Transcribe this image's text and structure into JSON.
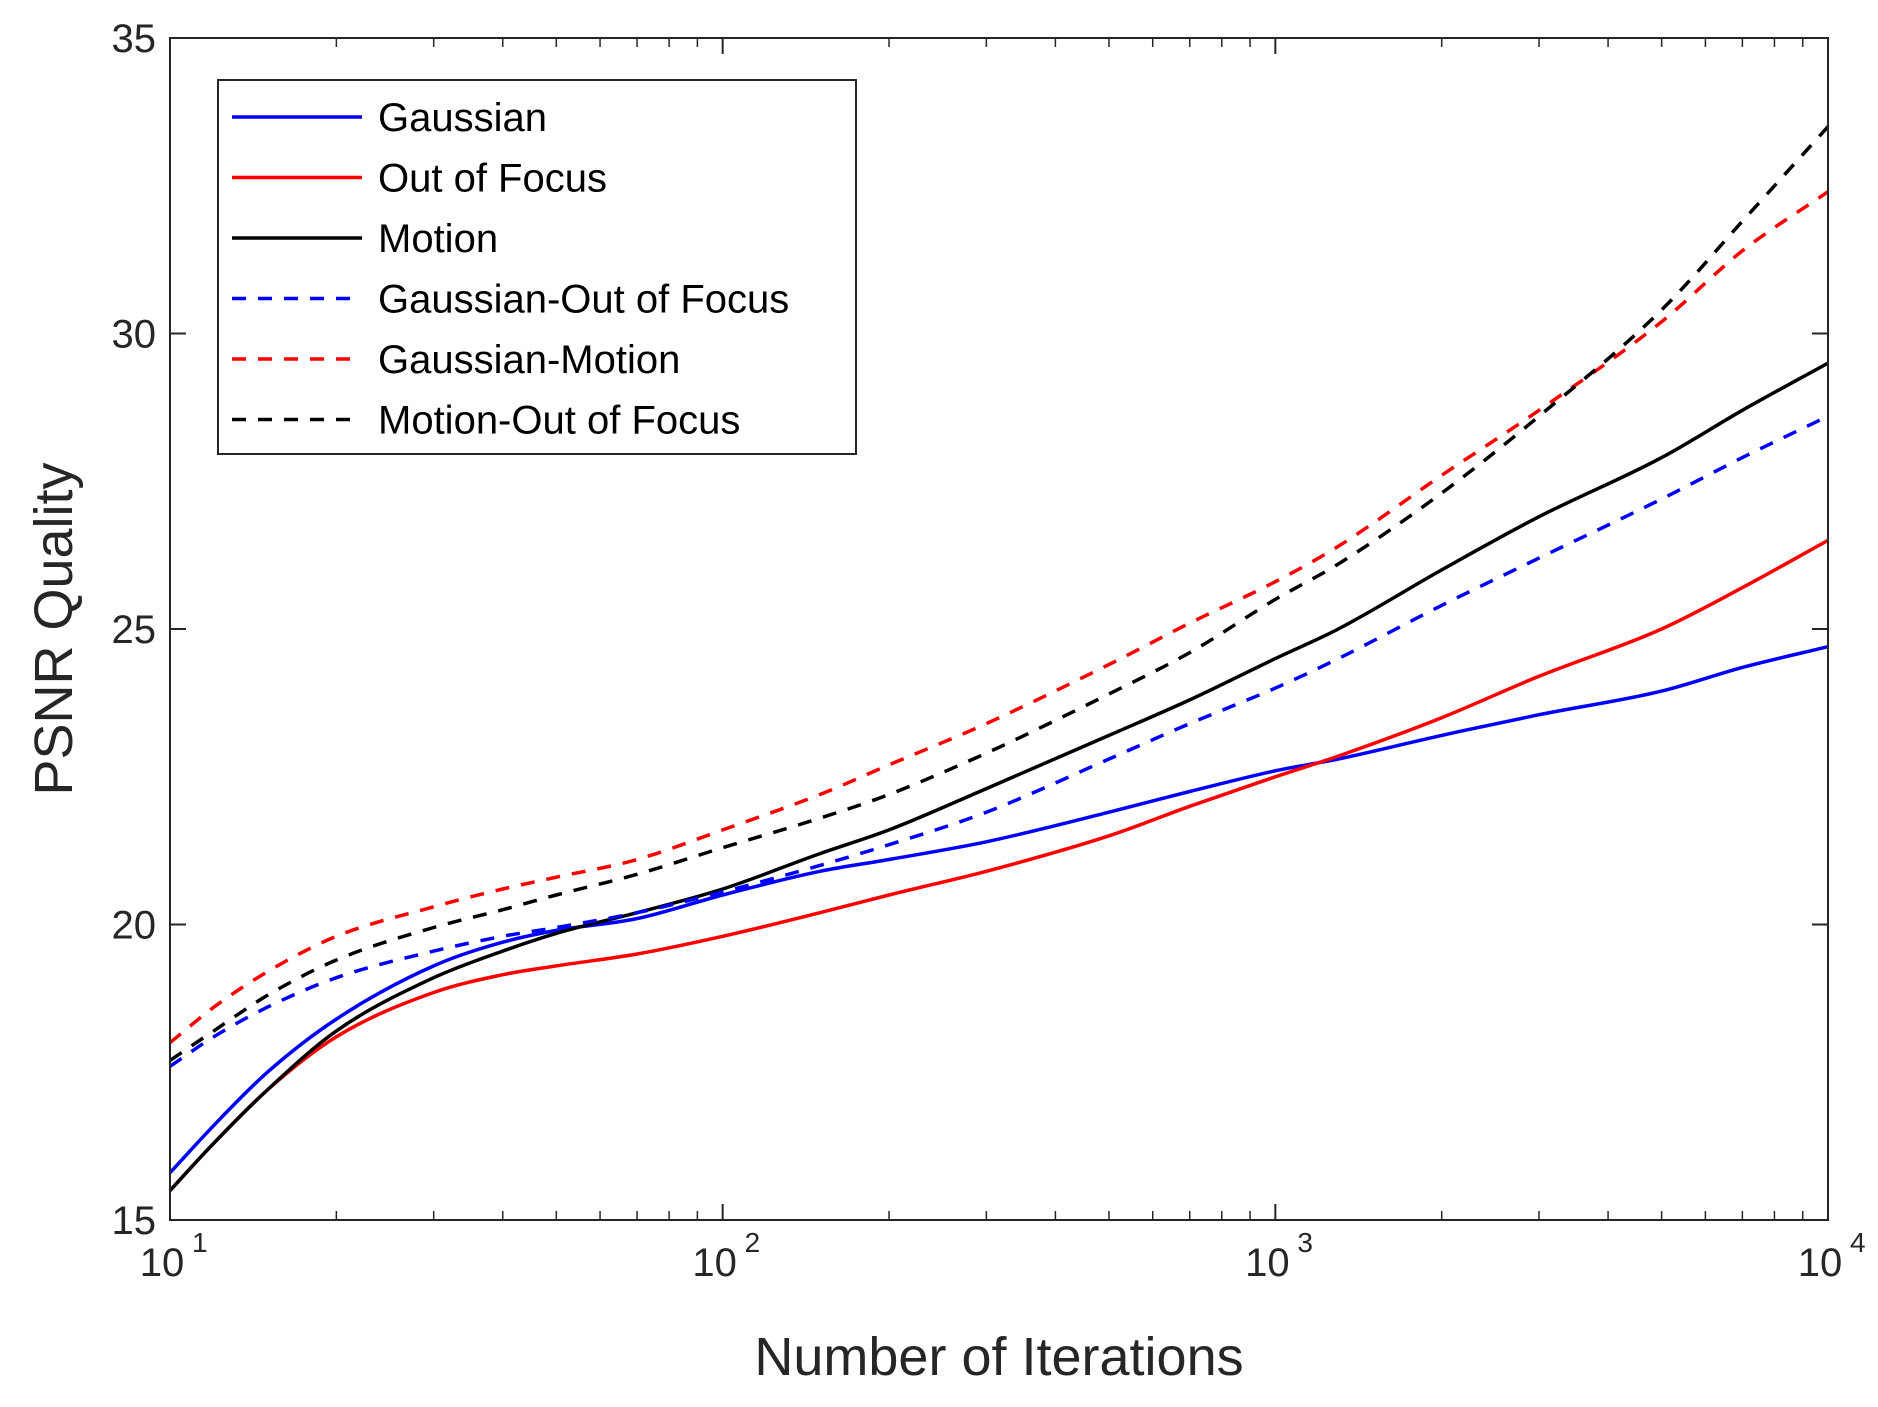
{
  "chart_data": {
    "type": "line",
    "title": "",
    "xlabel": "Number of Iterations",
    "ylabel": "PSNR Quality",
    "xscale": "log",
    "xlim": [
      10,
      10000
    ],
    "ylim": [
      15,
      35
    ],
    "yticks": [
      15,
      20,
      25,
      30,
      35
    ],
    "xticks": [
      {
        "value": 10,
        "base": "10",
        "exp": "1"
      },
      {
        "value": 100,
        "base": "10",
        "exp": "2"
      },
      {
        "value": 1000,
        "base": "10",
        "exp": "3"
      },
      {
        "value": 10000,
        "base": "10",
        "exp": "4"
      }
    ],
    "grid": false,
    "legend_location": "top-left",
    "x": [
      10,
      12,
      15,
      20,
      30,
      40,
      50,
      70,
      100,
      150,
      200,
      300,
      500,
      700,
      1000,
      1300,
      2000,
      3000,
      5000,
      7000,
      10000
    ],
    "series": [
      {
        "name": "Gaussian",
        "color": "#0000ff",
        "style": "solid",
        "values": [
          15.8,
          16.6,
          17.5,
          18.4,
          19.3,
          19.7,
          19.9,
          20.1,
          20.5,
          20.9,
          21.1,
          21.4,
          21.9,
          22.25,
          22.6,
          22.8,
          23.2,
          23.55,
          23.95,
          24.35,
          24.7
        ]
      },
      {
        "name": "Out of Focus",
        "color": "#ff0000",
        "style": "solid",
        "values": [
          15.5,
          16.3,
          17.2,
          18.1,
          18.85,
          19.15,
          19.3,
          19.5,
          19.8,
          20.2,
          20.5,
          20.9,
          21.5,
          22.0,
          22.5,
          22.85,
          23.5,
          24.2,
          25.0,
          25.7,
          26.5
        ]
      },
      {
        "name": "Motion",
        "color": "#000000",
        "style": "solid",
        "values": [
          15.5,
          16.3,
          17.2,
          18.2,
          19.1,
          19.55,
          19.85,
          20.2,
          20.6,
          21.2,
          21.6,
          22.3,
          23.2,
          23.8,
          24.5,
          25.0,
          26.0,
          26.9,
          27.9,
          28.7,
          29.5
        ]
      },
      {
        "name": "Gaussian-Out of Focus",
        "color": "#0000ff",
        "style": "dashed",
        "values": [
          17.6,
          18.1,
          18.6,
          19.1,
          19.55,
          19.8,
          19.95,
          20.2,
          20.55,
          21.0,
          21.35,
          21.9,
          22.8,
          23.4,
          24.0,
          24.5,
          25.4,
          26.2,
          27.2,
          27.9,
          28.6
        ]
      },
      {
        "name": "Gaussian-Motion",
        "color": "#ff0000",
        "style": "dashed",
        "values": [
          18.0,
          18.6,
          19.2,
          19.8,
          20.3,
          20.6,
          20.8,
          21.1,
          21.6,
          22.2,
          22.7,
          23.4,
          24.4,
          25.1,
          25.8,
          26.4,
          27.6,
          28.7,
          30.2,
          31.4,
          32.4
        ]
      },
      {
        "name": "Motion-Out of Focus",
        "color": "#000000",
        "style": "dashed",
        "values": [
          17.7,
          18.2,
          18.8,
          19.4,
          19.95,
          20.25,
          20.5,
          20.85,
          21.3,
          21.8,
          22.2,
          22.9,
          23.9,
          24.6,
          25.5,
          26.1,
          27.3,
          28.6,
          30.4,
          31.9,
          33.5
        ]
      }
    ]
  }
}
